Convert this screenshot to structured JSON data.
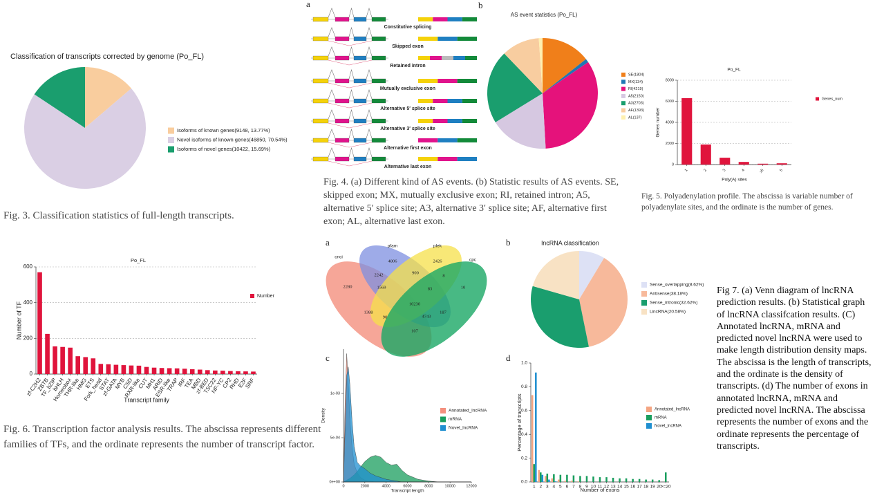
{
  "panel_labels": [
    "a",
    "b",
    "a",
    "b",
    "c",
    "d"
  ],
  "captions": [
    "Fig. 3. Classification statistics of full-length transcripts.",
    "Fig. 4. (a) Different kind of AS events. (b) Statistic results of AS events. SE, skipped exon; MX, mutually exclusive exon; RI, retained intron; A5, alternative 5′ splice site; A3, alternative 3′ splice site; AF, alternative first exon; AL, alternative last exon.",
    "Fig. 5. Polyadenylation profile. The abscissa is variable number of polyadenylate sites, and the ordinate is the number of genes.",
    "Fig. 6. Transcription factor analysis results. The abscissa represents different families of TFs, and the ordinate represents the number of transcript factor.",
    "Fig 7. (a) Venn diagram of lncRNA prediction results. (b) Statistical graph of lncRNA classifcation results. (C) Annotated lncRNA, mRNA and predicted novel lncRNA were used to make length distribution density maps. The abscissa is the length of transcripts, and the ordinate is the density of transcripts. (d) The number of exons in annotated lncRNA, mRNA and predicted novel lncRNA. The abscissa represents the number of exons and the ordinate represents the percentage of transcripts."
  ],
  "splicing_diagram": {
    "labels": [
      "Constitutive splicing",
      "Skipped exon",
      "Retained intron",
      "Mutually exclusive exon",
      "Alternative 5′ splice site",
      "Alternative 3′ splice site",
      "Alternative first exon",
      "Alternative last exon"
    ]
  },
  "venn": {
    "sets": [
      "cnci",
      "pfam",
      "plek",
      "cpc"
    ],
    "regions": [
      "2280",
      "4806",
      "2426",
      "10",
      "2242",
      "900",
      "8",
      "1569",
      "83",
      "10230",
      "1388",
      "90",
      "4743",
      "187",
      "107"
    ]
  },
  "chart_data": [
    {
      "type": "pie",
      "title": "Classification of transcripts corrected by genome (Po_FL)",
      "categories": [
        "Isoforms of known genes(9148, 13.77%)",
        "Novel isoforms of known genes(46850, 70.54%)",
        "Isoforms of novel genes(10422, 15.69%)"
      ],
      "values": [
        13.77,
        70.54,
        15.69
      ],
      "colors": [
        "#f9cd9e",
        "#dacfe4",
        "#1a9e6e"
      ]
    },
    {
      "type": "pie",
      "title": "AS event statistics (Po_FL)",
      "categories": [
        "SE(1804)",
        "MX(134)",
        "RI(4219)",
        "A5(2150)",
        "A3(2703)",
        "AF(1393)",
        "AL(137)"
      ],
      "values": [
        1804,
        134,
        4219,
        2150,
        2703,
        1393,
        137
      ],
      "colors": [
        "#f07f1a",
        "#1f78b4",
        "#e5127b",
        "#d6c8e1",
        "#1a9e6e",
        "#f8cda0",
        "#fff0b0"
      ]
    },
    {
      "type": "bar",
      "title": "Po_FL",
      "xlabel": "Poly(A) sites",
      "ylabel": "Genes number",
      "categories": [
        "1",
        "2",
        "3",
        "4",
        ">5",
        "5"
      ],
      "series": [
        {
          "name": "Genes_num",
          "color": "#e0143c",
          "values": [
            6300,
            1900,
            650,
            250,
            80,
            120
          ]
        }
      ],
      "ylim": [
        0,
        8000
      ],
      "yticks": [
        0,
        2000,
        4000,
        6000,
        8000
      ],
      "grid": true
    },
    {
      "type": "bar",
      "title": "Po_FL",
      "xlabel": "Transcript family",
      "ylabel": "Number of TF",
      "categories": [
        "zf-C2H2",
        "ZBTB",
        "TF_bZIP",
        "bHLH",
        "Homeobox",
        "THR-like",
        "HMG",
        "ETS",
        "Fork_head",
        "STAT",
        "zf-GATA",
        "MYB",
        "CSD",
        "RXR-like",
        "CUT",
        "MH1",
        "ARID",
        "ESR-like",
        "TRAP",
        "IRF",
        "TEA",
        "MBD",
        "zf-BED",
        "TSC22",
        "NF-YC",
        "CP2",
        "RHD",
        "E2F",
        "SRF"
      ],
      "series": [
        {
          "name": "Number",
          "color": "#e0143c",
          "values": [
            570,
            225,
            155,
            152,
            148,
            100,
            95,
            88,
            57,
            55,
            52,
            50,
            48,
            47,
            40,
            36,
            34,
            33,
            32,
            30,
            27,
            25,
            22,
            20,
            19,
            17,
            16,
            15,
            14
          ]
        }
      ],
      "ylim": [
        0,
        600
      ],
      "yticks": [
        0,
        200,
        400,
        600
      ],
      "grid": true
    },
    {
      "type": "pie",
      "title": "lncRNA classification",
      "categories": [
        "Sense_overlapping(8.62%)",
        "Antisense(38.18%)",
        "Sense_intronic(32.62%)",
        "LincRNA(20.58%)"
      ],
      "values": [
        8.62,
        38.18,
        32.62,
        20.58
      ],
      "colors": [
        "#dde1f5",
        "#f7b99b",
        "#1a9e6e",
        "#f8e2c4"
      ]
    },
    {
      "type": "area",
      "xlabel": "Transcript length",
      "ylabel": "Density",
      "x": [
        0,
        150,
        300,
        450,
        600,
        800,
        1000,
        1300,
        1600,
        2000,
        2500,
        3000,
        3500,
        4000,
        4500,
        5000,
        5500,
        6000,
        7000,
        8000,
        9000,
        10000,
        12000
      ],
      "series": [
        {
          "name": "Annotated_lncRNA",
          "color": "#f4907e",
          "values": [
            0,
            0.0009,
            0.00145,
            0.0011,
            0.0007,
            0.0004,
            0.0002,
            0.0001,
            5e-05,
            2e-05,
            1e-05,
            0,
            0,
            0,
            0,
            0,
            0,
            0,
            0,
            0,
            0,
            0,
            0
          ]
        },
        {
          "name": "mRNA",
          "color": "#1a9e5e",
          "values": [
            0,
            1e-05,
            2e-05,
            3e-05,
            4e-05,
            6e-05,
            8e-05,
            0.00012,
            0.00017,
            0.00023,
            0.00028,
            0.0003,
            0.00028,
            0.00022,
            0.00019,
            0.0002,
            0.00013,
            8e-05,
            3e-05,
            1e-05,
            0,
            0,
            0
          ]
        },
        {
          "name": "Novel_lncRNA",
          "color": "#1f8fd0",
          "values": [
            0,
            0.0006,
            0.0012,
            0.0013,
            0.0011,
            0.0007,
            0.0004,
            0.00022,
            0.00018,
            0.00015,
            0.0001,
            7e-05,
            5e-05,
            3e-05,
            2e-05,
            1e-05,
            0,
            0,
            0,
            0,
            0,
            0,
            0
          ]
        }
      ],
      "xlim": [
        0,
        12000
      ],
      "xticks": [
        0,
        2000,
        4000,
        6000,
        8000,
        10000,
        12000
      ],
      "ylim": [
        0,
        0.0015
      ],
      "yticks": [
        {
          "value": 0,
          "label": "0e+00"
        },
        {
          "value": 0.0005,
          "label": "5e-04"
        },
        {
          "value": 0.001,
          "label": "1e-03"
        }
      ],
      "grid": false
    },
    {
      "type": "bar",
      "xlabel": "Number of exons",
      "ylabel": "Percentage of transcripts",
      "categories": [
        "1",
        "2",
        "3",
        "4",
        "5",
        "6",
        "7",
        "8",
        "9",
        "10",
        "11",
        "12",
        "13",
        "14",
        "15",
        "16",
        "17",
        "18",
        "19",
        "20",
        ">=20"
      ],
      "series": [
        {
          "name": "Annotated_lncRNA",
          "color": "#f4a582",
          "values": [
            0.73,
            0.1,
            0.05,
            0.03,
            0.02,
            0.01,
            0.01,
            0.005,
            0,
            0,
            0,
            0,
            0,
            0,
            0,
            0,
            0,
            0,
            0,
            0,
            0
          ]
        },
        {
          "name": "mRNA",
          "color": "#1a9e5e",
          "values": [
            0.15,
            0.08,
            0.07,
            0.065,
            0.06,
            0.06,
            0.055,
            0.05,
            0.05,
            0.045,
            0.04,
            0.04,
            0.035,
            0.03,
            0.03,
            0.025,
            0.025,
            0.02,
            0.02,
            0.015,
            0.08
          ]
        },
        {
          "name": "Novel_lncRNA",
          "color": "#1f8fd0",
          "values": [
            0.92,
            0.06,
            0.02,
            0.005,
            0,
            0,
            0,
            0,
            0,
            0,
            0,
            0,
            0,
            0,
            0,
            0,
            0,
            0,
            0,
            0,
            0
          ]
        }
      ],
      "ylim": [
        0,
        1.0
      ],
      "yticks": [
        {
          "value": 0,
          "label": "0.0"
        },
        {
          "value": 0.2,
          "label": "0.2"
        },
        {
          "value": 0.4,
          "label": "0.4"
        },
        {
          "value": 0.6,
          "label": "0.6"
        },
        {
          "value": 0.8,
          "label": "0.8"
        },
        {
          "value": 1.0,
          "label": "1.0"
        }
      ],
      "grid": false
    }
  ]
}
